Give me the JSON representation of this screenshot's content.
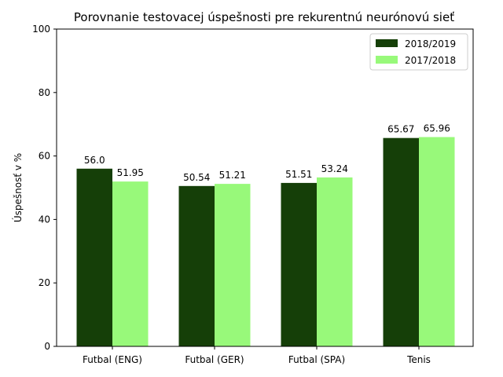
{
  "chart_data": {
    "type": "bar",
    "title": "Porovnanie testovacej úspešnosti pre rekurentnú neurónovú sieť",
    "xlabel": "",
    "ylabel": "Úspešnosť v %",
    "ylim": [
      0,
      100
    ],
    "yticks": [
      0,
      20,
      40,
      60,
      80,
      100
    ],
    "grid": false,
    "legend_position": "top-right",
    "categories": [
      "Futbal (ENG)",
      "Futbal (GER)",
      "Futbal (SPA)",
      "Tenis"
    ],
    "series": [
      {
        "name": "2018/2019",
        "color": "#153f08",
        "values": [
          56.0,
          50.54,
          51.51,
          65.67
        ],
        "labels": [
          "56.0",
          "50.54",
          "51.51",
          "65.67"
        ]
      },
      {
        "name": "2017/2018",
        "color": "#98f97a",
        "values": [
          51.95,
          51.21,
          53.24,
          65.96
        ],
        "labels": [
          "51.95",
          "51.21",
          "53.24",
          "65.96"
        ]
      }
    ]
  }
}
